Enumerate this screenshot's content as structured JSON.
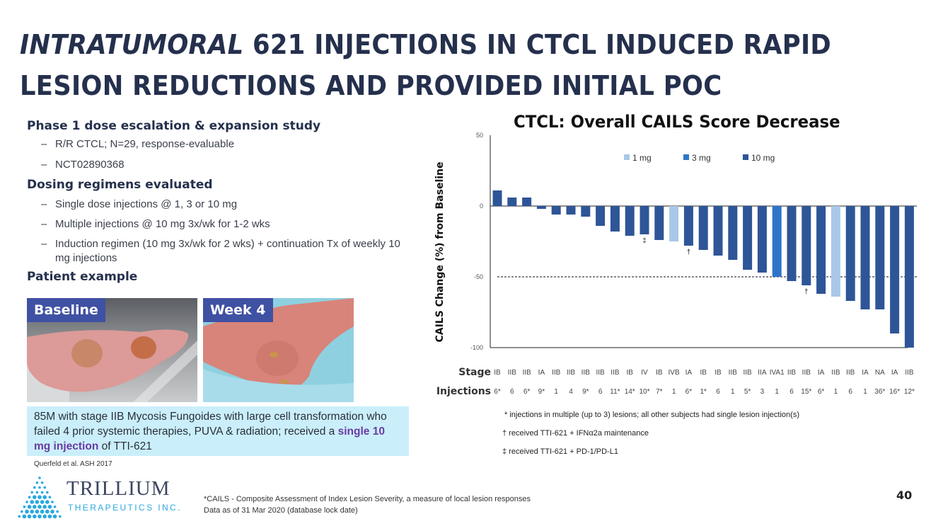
{
  "slide": {
    "title_italic": "INTRATUMORAL",
    "title_rest_line1": " 621 INJECTIONS IN CTCL INDUCED RAPID",
    "title_line2": "LESION REDUCTIONS AND PROVIDED INITIAL POC",
    "page_number": "40"
  },
  "left": {
    "section1_heading": "Phase 1 dose escalation & expansion study",
    "section1_bullets": [
      "R/R CTCL; N=29, response-evaluable",
      "NCT02890368"
    ],
    "section2_heading": "Dosing regimens evaluated",
    "section2_bullets": [
      "Single dose injections @ 1, 3 or 10 mg",
      "Multiple injections @ 10 mg 3x/wk for 1-2 wks",
      "Induction regimen (10 mg 3x/wk for 2 wks) + continuation Tx of weekly 10 mg injections"
    ],
    "section3_heading": "Patient example",
    "photo1_label": "Baseline",
    "photo2_label": "Week 4",
    "caption_part1": "85M with stage IIB Mycosis Fungoides with large cell transformation who failed 4 prior systemic therapies, PUVA & radiation; received a ",
    "caption_highlight": "single 10 mg injection",
    "caption_part2": " of TTI-621",
    "reference": "Querfeld et al. ASH 2017"
  },
  "footer": {
    "logo_name": "TRILLIUM",
    "logo_sub": "THERAPEUTICS INC.",
    "line1": "*CAILS - Composite Assessment of Index Lesion Severity, a measure of local lesion responses",
    "line2": "Data as of 31 Mar 2020 (database lock date)"
  },
  "colors": {
    "dose_1mg": "#a9c8e8",
    "dose_3mg": "#2e75c9",
    "dose_10mg": "#2e5597",
    "label_box": "#3f51a3",
    "caption_bg": "#caeffa"
  },
  "chart_data": {
    "type": "bar",
    "title": "CTCL: Overall CAILS Score Decrease",
    "ylabel": "CAILS Change (%) from Baseline",
    "xlabel": "",
    "ylim": [
      -100,
      50
    ],
    "yticks": [
      50,
      0,
      -50,
      -100
    ],
    "reference_line": -50,
    "grid": false,
    "legend": {
      "placement": "top-right",
      "entries": [
        "1 mg",
        "3 mg",
        "10 mg"
      ]
    },
    "row_labels": {
      "stage": "Stage",
      "injections": "Injections"
    },
    "stages": [
      "IB",
      "IIB",
      "IIB",
      "IA",
      "IIB",
      "IIB",
      "IIB",
      "IIB",
      "IIB",
      "IB",
      "IV",
      "IB",
      "IVB",
      "IA",
      "IB",
      "IB",
      "IIB",
      "IIB",
      "IIA",
      "IVA1",
      "IIB",
      "IIB",
      "IA",
      "IIB",
      "IIB",
      "IA",
      "NA",
      "IA",
      "IIB"
    ],
    "injections": [
      "6*",
      "6",
      "6*",
      "9*",
      "1",
      "4",
      "9*",
      "6",
      "11*",
      "14*",
      "10*",
      "7*",
      "1",
      "6*",
      "1*",
      "6",
      "1",
      "5*",
      "3",
      "1",
      "6",
      "15*",
      "6*",
      "1",
      "6",
      "1",
      "36*",
      "16*",
      "12*"
    ],
    "values": [
      11,
      6,
      6,
      -2,
      -6,
      -6,
      -7.5,
      -14,
      -18,
      -21,
      -20,
      -24,
      -25,
      -28,
      -31,
      -35,
      -38,
      -45,
      -47,
      -50,
      -53,
      -56,
      -62,
      -64,
      -67,
      -73,
      -73,
      -90,
      -100
    ],
    "doses": [
      "10 mg",
      "10 mg",
      "10 mg",
      "10 mg",
      "10 mg",
      "10 mg",
      "10 mg",
      "10 mg",
      "10 mg",
      "10 mg",
      "10 mg",
      "10 mg",
      "1 mg",
      "10 mg",
      "10 mg",
      "10 mg",
      "10 mg",
      "10 mg",
      "10 mg",
      "3 mg",
      "10 mg",
      "10 mg",
      "10 mg",
      "1 mg",
      "10 mg",
      "10 mg",
      "10 mg",
      "10 mg",
      "10 mg"
    ],
    "markers": [
      "",
      "",
      "",
      "",
      "",
      "",
      "",
      "",
      "",
      "",
      "‡",
      "",
      "",
      "†",
      "",
      "",
      "",
      "",
      "",
      "",
      "",
      "†",
      "",
      "",
      "",
      "",
      "",
      "",
      ""
    ],
    "notes": [
      "* injections in multiple (up to 3) lesions; all other subjects had single lesion injection(s)",
      "† received TTI-621 + IFNα2a maintenance",
      "‡ received TTI-621 + PD-1/PD-L1"
    ]
  }
}
